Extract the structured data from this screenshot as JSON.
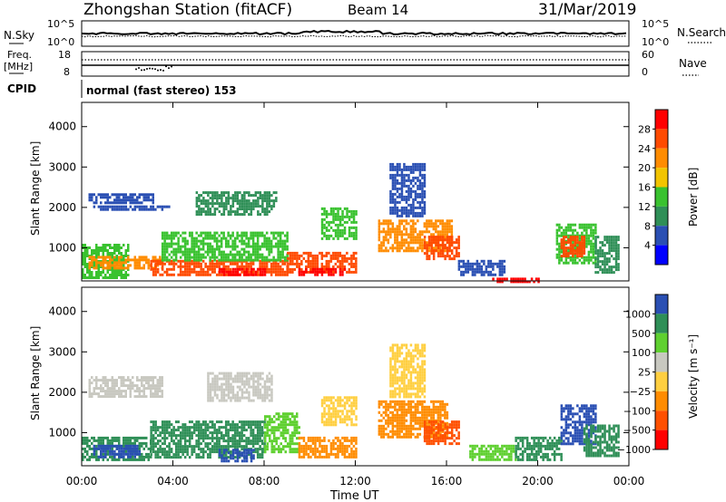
{
  "header": {
    "station": "Zhongshan Station (fitACF)",
    "beam": "Beam 14",
    "date": "31/Mar/2019"
  },
  "top_panels": {
    "nsky_label": "N.Sky",
    "nsky_ticks": [
      "10^5",
      "10^0"
    ],
    "nsearch_label": "N.Search",
    "nsearch_ticks": [
      "10^5",
      "10^0"
    ],
    "freq_label": "Freq.",
    "freq_unit": "[MHz]",
    "freq_ticks": [
      "18",
      "8"
    ],
    "nave_label": "Nave",
    "nave_ticks": [
      "60",
      "0"
    ],
    "cpid_label": "CPID",
    "cpid_text": "normal (fast stereo) 153"
  },
  "colors": {
    "power": [
      "#0000ff",
      "#2a4fb3",
      "#2f8f57",
      "#39c22f",
      "#f2c400",
      "#ff8c00",
      "#ff4a00",
      "#ff0000"
    ],
    "velocity": [
      "#ff0000",
      "#ff5000",
      "#ff8c00",
      "#ffcf40",
      "#c8c8c0",
      "#5fd030",
      "#2f8f57",
      "#2a4fb3"
    ]
  },
  "chart_data": [
    {
      "type": "heatmap",
      "name": "power",
      "ylabel": "Slant Range [km]",
      "yticks": [
        1000,
        2000,
        3000,
        4000
      ],
      "ylim": [
        180,
        4600
      ],
      "xlim": [
        0,
        24
      ],
      "colorbar_label": "Power [dB]",
      "colorbar_ticks": [
        "28",
        "24",
        "20",
        "16",
        "12",
        "8",
        "4"
      ],
      "patches": [
        {
          "t": [
            0.3,
            3.1
          ],
          "r": [
            2100,
            2350
          ],
          "level": 1
        },
        {
          "t": [
            0.5,
            3.8
          ],
          "r": [
            1950,
            2050
          ],
          "level": 1
        },
        {
          "t": [
            0.0,
            2.0
          ],
          "r": [
            250,
            1100
          ],
          "level": 3
        },
        {
          "t": [
            0.3,
            3.5
          ],
          "r": [
            500,
            800
          ],
          "level": 5
        },
        {
          "t": [
            3.0,
            9.0
          ],
          "r": [
            300,
            700
          ],
          "level": 6
        },
        {
          "t": [
            5.0,
            8.5
          ],
          "r": [
            1800,
            2400
          ],
          "level": 2
        },
        {
          "t": [
            3.5,
            9.0
          ],
          "r": [
            700,
            1400
          ],
          "level": 3
        },
        {
          "t": [
            6.0,
            8.0
          ],
          "r": [
            300,
            500
          ],
          "level": 7
        },
        {
          "t": [
            9.0,
            12.0
          ],
          "r": [
            400,
            900
          ],
          "level": 6
        },
        {
          "t": [
            9.5,
            11.5
          ],
          "r": [
            300,
            500
          ],
          "level": 7
        },
        {
          "t": [
            10.5,
            12.0
          ],
          "r": [
            1200,
            2000
          ],
          "level": 3
        },
        {
          "t": [
            13.0,
            16.2
          ],
          "r": [
            900,
            1700
          ],
          "level": 5
        },
        {
          "t": [
            13.5,
            15.0
          ],
          "r": [
            1800,
            3100
          ],
          "level": 1
        },
        {
          "t": [
            15.0,
            16.5
          ],
          "r": [
            700,
            1300
          ],
          "level": 6
        },
        {
          "t": [
            16.5,
            18.5
          ],
          "r": [
            300,
            700
          ],
          "level": 1
        },
        {
          "t": [
            18.0,
            20.0
          ],
          "r": [
            180,
            260
          ],
          "level": 7
        },
        {
          "t": [
            20.8,
            22.5
          ],
          "r": [
            600,
            1600
          ],
          "level": 3
        },
        {
          "t": [
            21.0,
            22.0
          ],
          "r": [
            800,
            1300
          ],
          "level": 6
        },
        {
          "t": [
            22.5,
            23.5
          ],
          "r": [
            400,
            1300
          ],
          "level": 2
        }
      ]
    },
    {
      "type": "heatmap",
      "name": "velocity",
      "xlabel": "Time UT",
      "ylabel": "Slant Range [km]",
      "yticks": [
        1000,
        2000,
        3000,
        4000
      ],
      "ylim": [
        180,
        4600
      ],
      "xlim": [
        0,
        24
      ],
      "xticks": [
        "00:00",
        "04:00",
        "08:00",
        "12:00",
        "16:00",
        "20:00",
        "00:00"
      ],
      "colorbar_label": "Velocity [m s⁻¹]",
      "colorbar_ticks": [
        "1000",
        "500",
        "100",
        "25",
        "−25",
        "−100",
        "−500",
        "−1000"
      ],
      "patches": [
        {
          "t": [
            0.3,
            3.5
          ],
          "r": [
            1900,
            2400
          ],
          "level": 4
        },
        {
          "t": [
            5.5,
            8.3
          ],
          "r": [
            1800,
            2500
          ],
          "level": 4
        },
        {
          "t": [
            0.0,
            3.0
          ],
          "r": [
            300,
            900
          ],
          "level": 6
        },
        {
          "t": [
            0.5,
            2.5
          ],
          "r": [
            400,
            700
          ],
          "level": 7
        },
        {
          "t": [
            3.0,
            8.0
          ],
          "r": [
            400,
            1300
          ],
          "level": 6
        },
        {
          "t": [
            6.0,
            7.5
          ],
          "r": [
            300,
            600
          ],
          "level": 7
        },
        {
          "t": [
            8.0,
            9.5
          ],
          "r": [
            500,
            1500
          ],
          "level": 5
        },
        {
          "t": [
            9.5,
            12.0
          ],
          "r": [
            400,
            900
          ],
          "level": 2
        },
        {
          "t": [
            10.5,
            12.0
          ],
          "r": [
            1200,
            1900
          ],
          "level": 3
        },
        {
          "t": [
            13.0,
            16.0
          ],
          "r": [
            900,
            1800
          ],
          "level": 2
        },
        {
          "t": [
            13.5,
            15.0
          ],
          "r": [
            1900,
            3200
          ],
          "level": 3
        },
        {
          "t": [
            15.0,
            16.5
          ],
          "r": [
            700,
            1300
          ],
          "level": 1
        },
        {
          "t": [
            17.0,
            19.0
          ],
          "r": [
            300,
            700
          ],
          "level": 5
        },
        {
          "t": [
            19.0,
            21.0
          ],
          "r": [
            300,
            900
          ],
          "level": 6
        },
        {
          "t": [
            21.0,
            22.5
          ],
          "r": [
            700,
            1700
          ],
          "level": 7
        },
        {
          "t": [
            22.0,
            23.5
          ],
          "r": [
            400,
            1200
          ],
          "level": 6
        }
      ]
    }
  ]
}
